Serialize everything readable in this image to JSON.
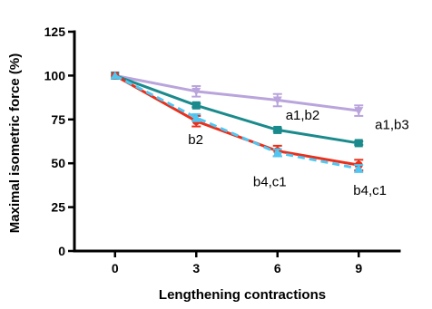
{
  "chart_data": {
    "type": "line",
    "title": "",
    "xlabel": "Lengthening contractions",
    "ylabel": "Maximal isometric force (%)",
    "x": [
      0,
      3,
      6,
      9
    ],
    "x_ticks": [
      "0",
      "3",
      "6",
      "9"
    ],
    "y_ticks": [
      "0",
      "25",
      "50",
      "75",
      "100",
      "125"
    ],
    "xlim": [
      -1.5,
      10.5
    ],
    "ylim": [
      0,
      125
    ],
    "grid": false,
    "series": [
      {
        "values": [
          100,
          91,
          86,
          80
        ],
        "errors": [
          0,
          3,
          3.5,
          3
        ],
        "color": "#b9a4dc",
        "marker": "triangle-down",
        "dashed": false
      },
      {
        "values": [
          100,
          83,
          69,
          61.5
        ],
        "errors": [
          0,
          1,
          1,
          1
        ],
        "color": "#1b8a8c",
        "marker": "square",
        "dashed": false
      },
      {
        "values": [
          100,
          74,
          57,
          49
        ],
        "errors": [
          0,
          3,
          3,
          3
        ],
        "color": "#e8301c",
        "marker": "circle",
        "dashed": false
      },
      {
        "values": [
          100,
          76,
          56,
          47
        ],
        "errors": [
          0,
          2,
          2,
          2
        ],
        "color": "#4fc7f2",
        "marker": "triangle-up",
        "dashed": true
      }
    ],
    "annotations": [
      {
        "text": "a1,b2",
        "x": 6.3,
        "y": 75
      },
      {
        "text": "a1,b3",
        "x": 9.6,
        "y": 69.5
      },
      {
        "text": "b2",
        "x": 2.7,
        "y": 61
      },
      {
        "text": "b4,c1",
        "x": 5.1,
        "y": 37
      },
      {
        "text": "b4,c1",
        "x": 8.8,
        "y": 32
      }
    ]
  }
}
